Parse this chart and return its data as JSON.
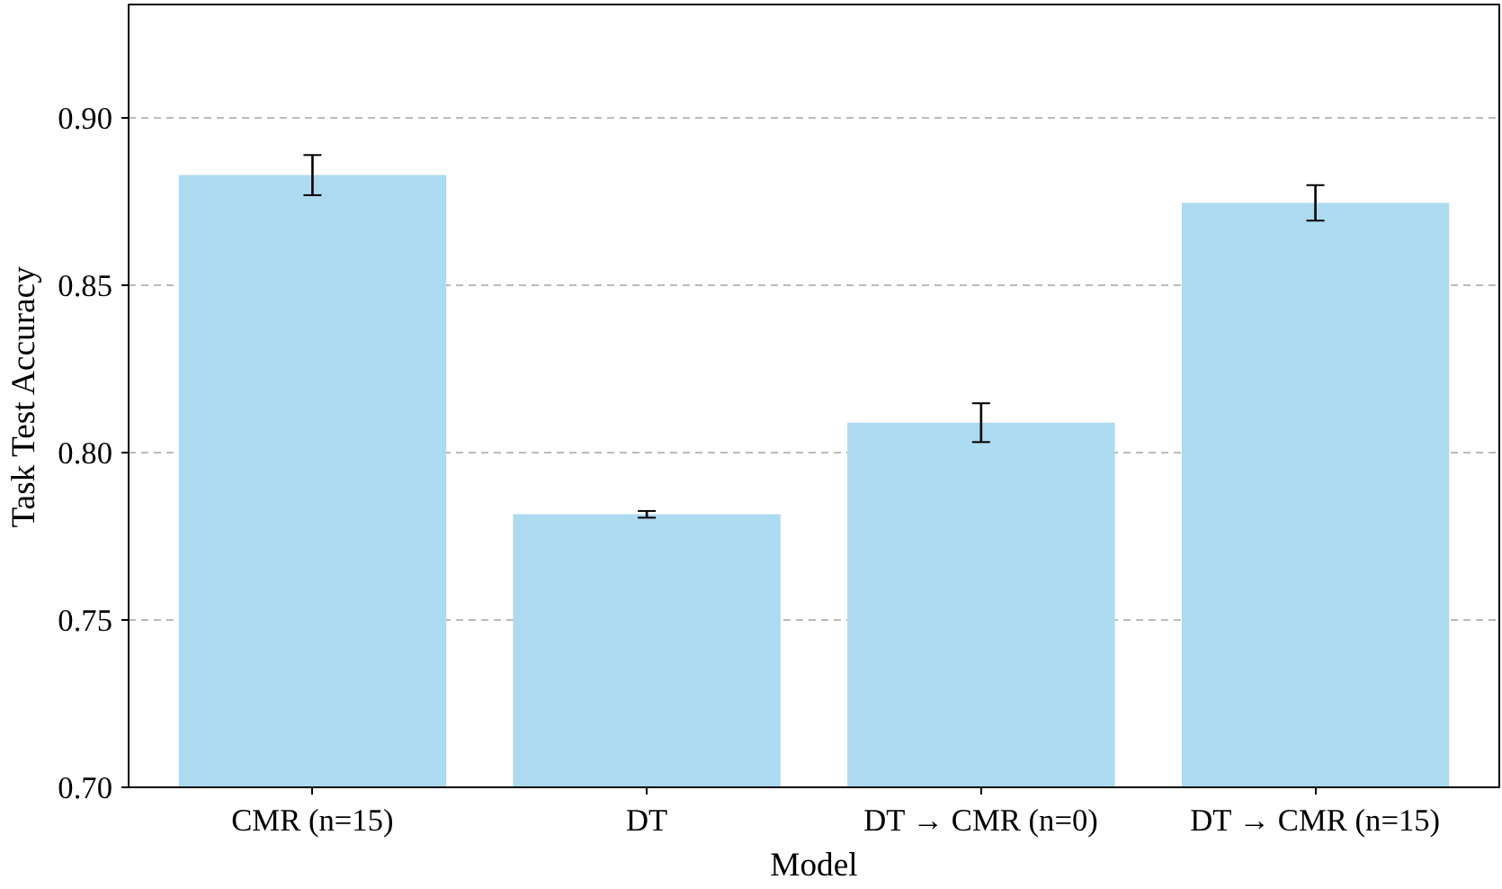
{
  "chart_data": {
    "type": "bar",
    "xlabel": "Model",
    "ylabel": "Task Test Accuracy",
    "categories": [
      "CMR (n=15)",
      "DT",
      "DT → CMR (n=0)",
      "DT → CMR (n=15)"
    ],
    "values": [
      0.883,
      0.7816,
      0.809,
      0.8747
    ],
    "errors": [
      0.006,
      0.001,
      0.0058,
      0.0053
    ],
    "color": "#acdaf0",
    "ylim": [
      0.7,
      0.934
    ],
    "yticks": [
      {
        "value": 0.7,
        "label": "0.70"
      },
      0.75,
      {
        "value": 0.8,
        "label": "0.80"
      },
      0.85,
      {
        "value": 0.9,
        "label": "0.90"
      }
    ],
    "grid": "y"
  }
}
